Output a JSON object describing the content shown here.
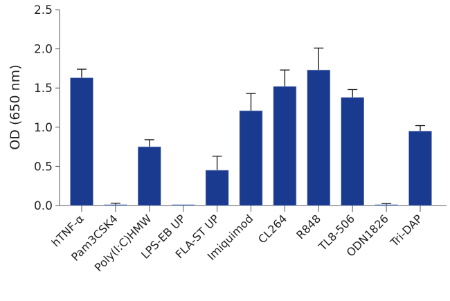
{
  "chart_data": {
    "type": "bar",
    "title": "",
    "xlabel": "",
    "ylabel": "OD (650 nm)",
    "ylim": [
      0,
      2.5
    ],
    "yticks": [
      "0.0",
      "0.5",
      "1.0",
      "1.5",
      "2.0",
      "2.5"
    ],
    "categories": [
      "hTNF-α",
      "Pam3CSK4",
      "Poly(I:C)HMW",
      "LPS-EB UP",
      "FLA-ST UP",
      "Imiquimod",
      "CL264",
      "R848",
      "TL8-506",
      "ODN1826",
      "Tri-DAP"
    ],
    "values": [
      1.63,
      0.01,
      0.75,
      0.0,
      0.45,
      1.21,
      1.52,
      1.73,
      1.38,
      0.01,
      0.95
    ],
    "error_upper": [
      1.74,
      0.03,
      0.84,
      0.005,
      0.63,
      1.43,
      1.73,
      2.01,
      1.48,
      0.025,
      1.02
    ],
    "bar_color": "#1a3a8f",
    "grid": false,
    "legend": "none"
  }
}
